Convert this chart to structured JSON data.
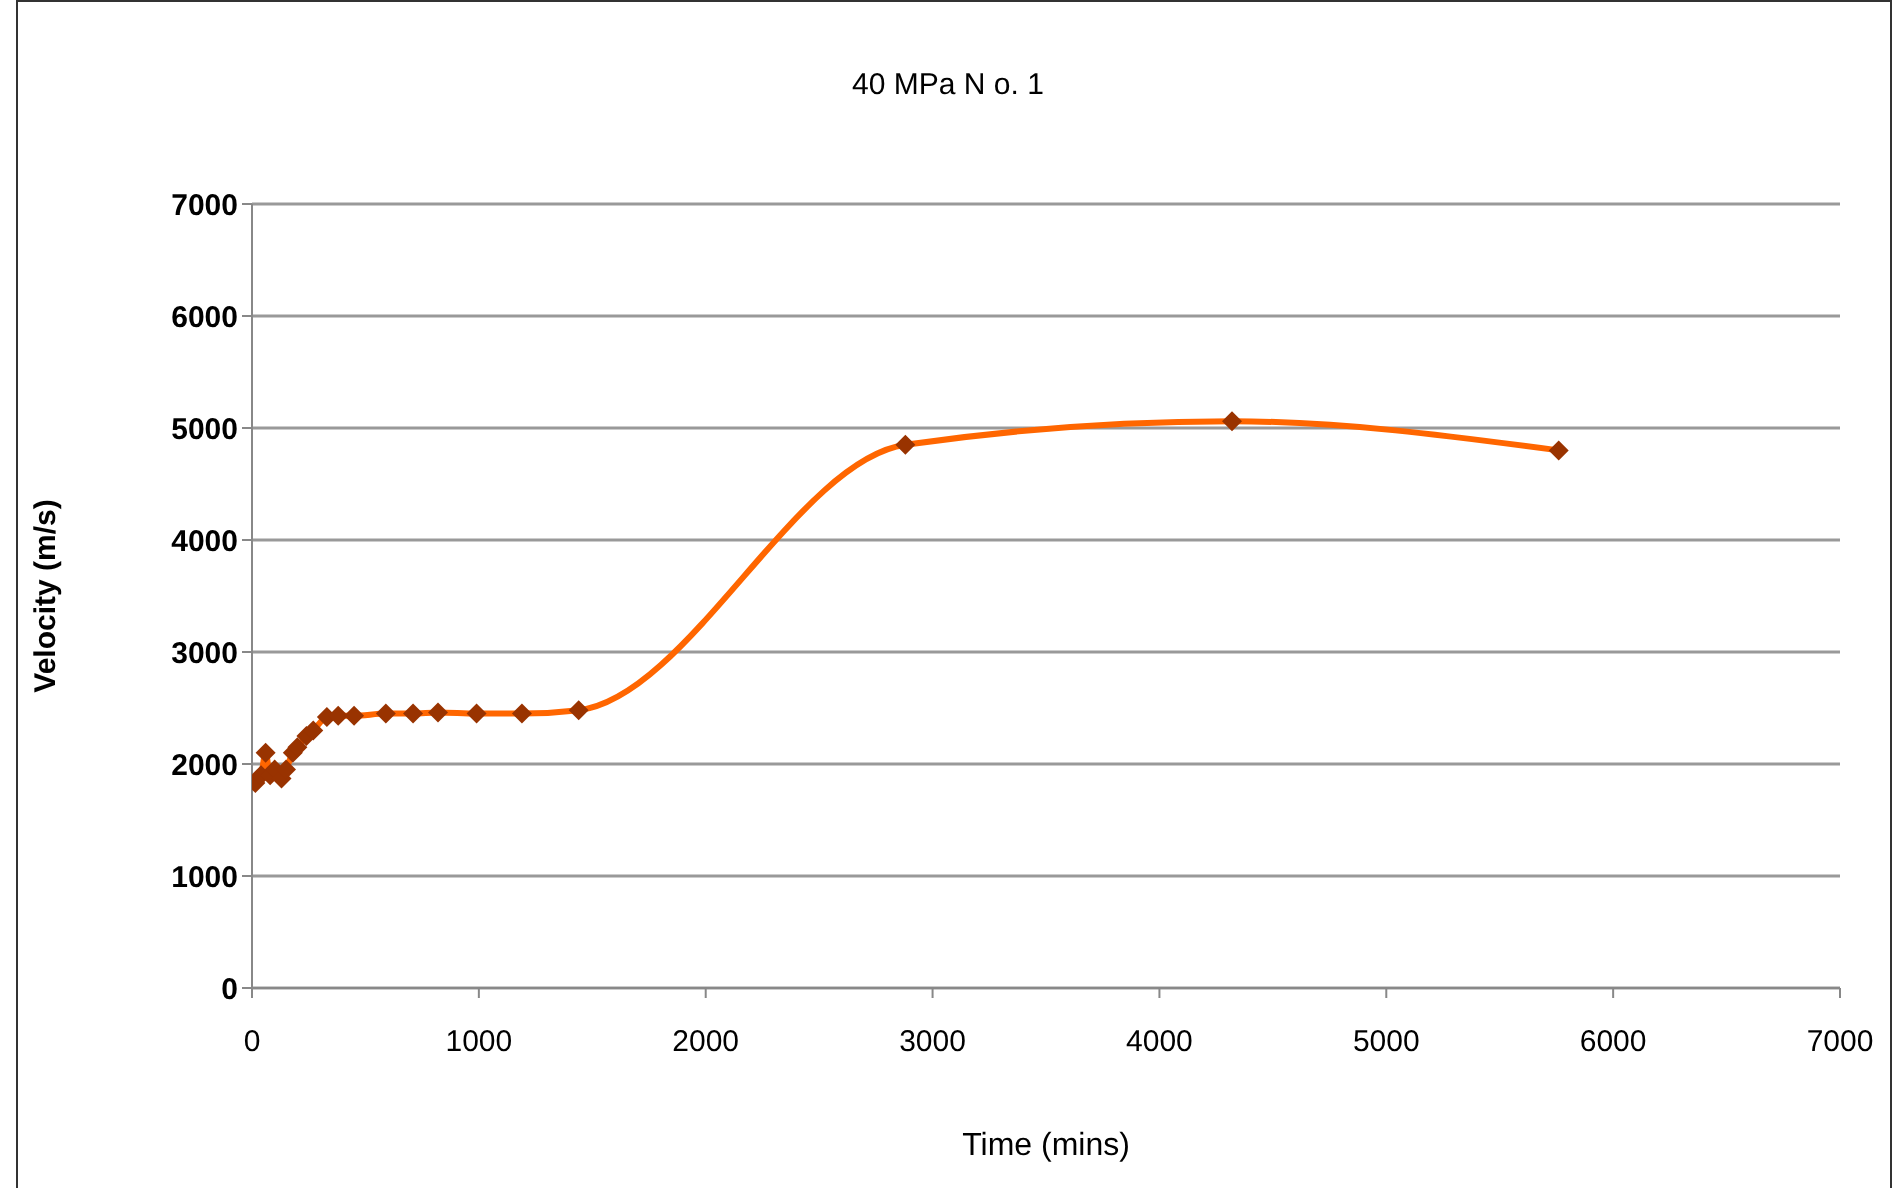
{
  "chart_data": {
    "type": "line",
    "title": "40 MPa N o. 1",
    "xlabel": "Time (mins)",
    "ylabel": "Velocity (m/s)",
    "xlim": [
      0,
      7000
    ],
    "xticks": [
      0,
      1000,
      2000,
      3000,
      4000,
      5000,
      6000,
      7000
    ],
    "ylim": [
      0,
      7000
    ],
    "yticks": [
      0,
      1000,
      2000,
      3000,
      4000,
      5000,
      6000,
      7000
    ],
    "grid": "y",
    "series": [
      {
        "type": "line",
        "color": "#ff6600",
        "marker": "none",
        "x": [
          15,
          40,
          60,
          80,
          100,
          130,
          150,
          180,
          200,
          240,
          270,
          330,
          380,
          450,
          590,
          710,
          820,
          990,
          1190,
          1440,
          2880,
          4320,
          5760
        ],
        "values": [
          1830,
          1900,
          2100,
          1900,
          1950,
          1870,
          1950,
          2100,
          2150,
          2250,
          2300,
          2420,
          2430,
          2430,
          2450,
          2450,
          2460,
          2450,
          2450,
          2480,
          4850,
          5060,
          4800
        ]
      },
      {
        "type": "scatter",
        "color": "#993300",
        "marker": "diamond",
        "x": [
          15,
          40,
          60,
          80,
          100,
          130,
          150,
          180,
          200,
          240,
          270,
          330,
          380,
          450,
          590,
          710,
          820,
          990,
          1190,
          1440,
          2880,
          4320,
          5760
        ],
        "values": [
          1830,
          1900,
          2100,
          1900,
          1950,
          1870,
          1950,
          2100,
          2150,
          2250,
          2300,
          2420,
          2430,
          2430,
          2450,
          2450,
          2460,
          2450,
          2450,
          2480,
          4850,
          5060,
          4800
        ]
      }
    ]
  }
}
